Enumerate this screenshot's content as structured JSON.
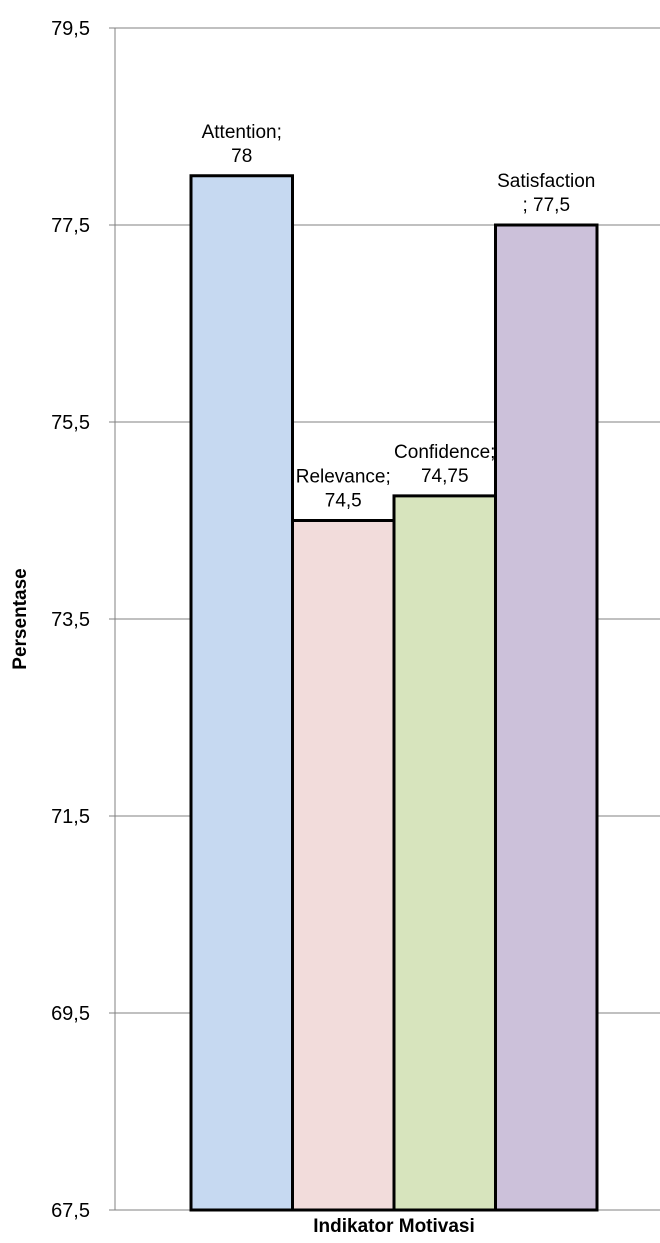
{
  "chart_data": {
    "type": "bar",
    "xlabel": "Indikator Motivasi",
    "ylabel": "Persentase",
    "ylim": [
      67.5,
      79.5
    ],
    "yticks": [
      67.5,
      69.5,
      71.5,
      73.5,
      75.5,
      77.5,
      79.5
    ],
    "ytick_labels": [
      "67,5",
      "69,5",
      "71,5",
      "73,5",
      "75,5",
      "77,5",
      "79,5"
    ],
    "grid": "horizontal",
    "series": [
      {
        "category": "Attention",
        "value": 78,
        "color": "#c6d9f1",
        "label_lines": [
          "Attention;",
          "78"
        ]
      },
      {
        "category": "Relevance",
        "value": 74.5,
        "color": "#f2dcdb",
        "label_lines": [
          "Relevance;",
          "74,5"
        ]
      },
      {
        "category": "Confidence",
        "value": 74.75,
        "color": "#d7e4bd",
        "label_lines": [
          "Confidence;",
          "74,75"
        ]
      },
      {
        "category": "Satisfaction",
        "value": 77.5,
        "color": "#ccc1da",
        "label_lines": [
          "Satisfaction",
          "; 77,5"
        ]
      }
    ]
  }
}
